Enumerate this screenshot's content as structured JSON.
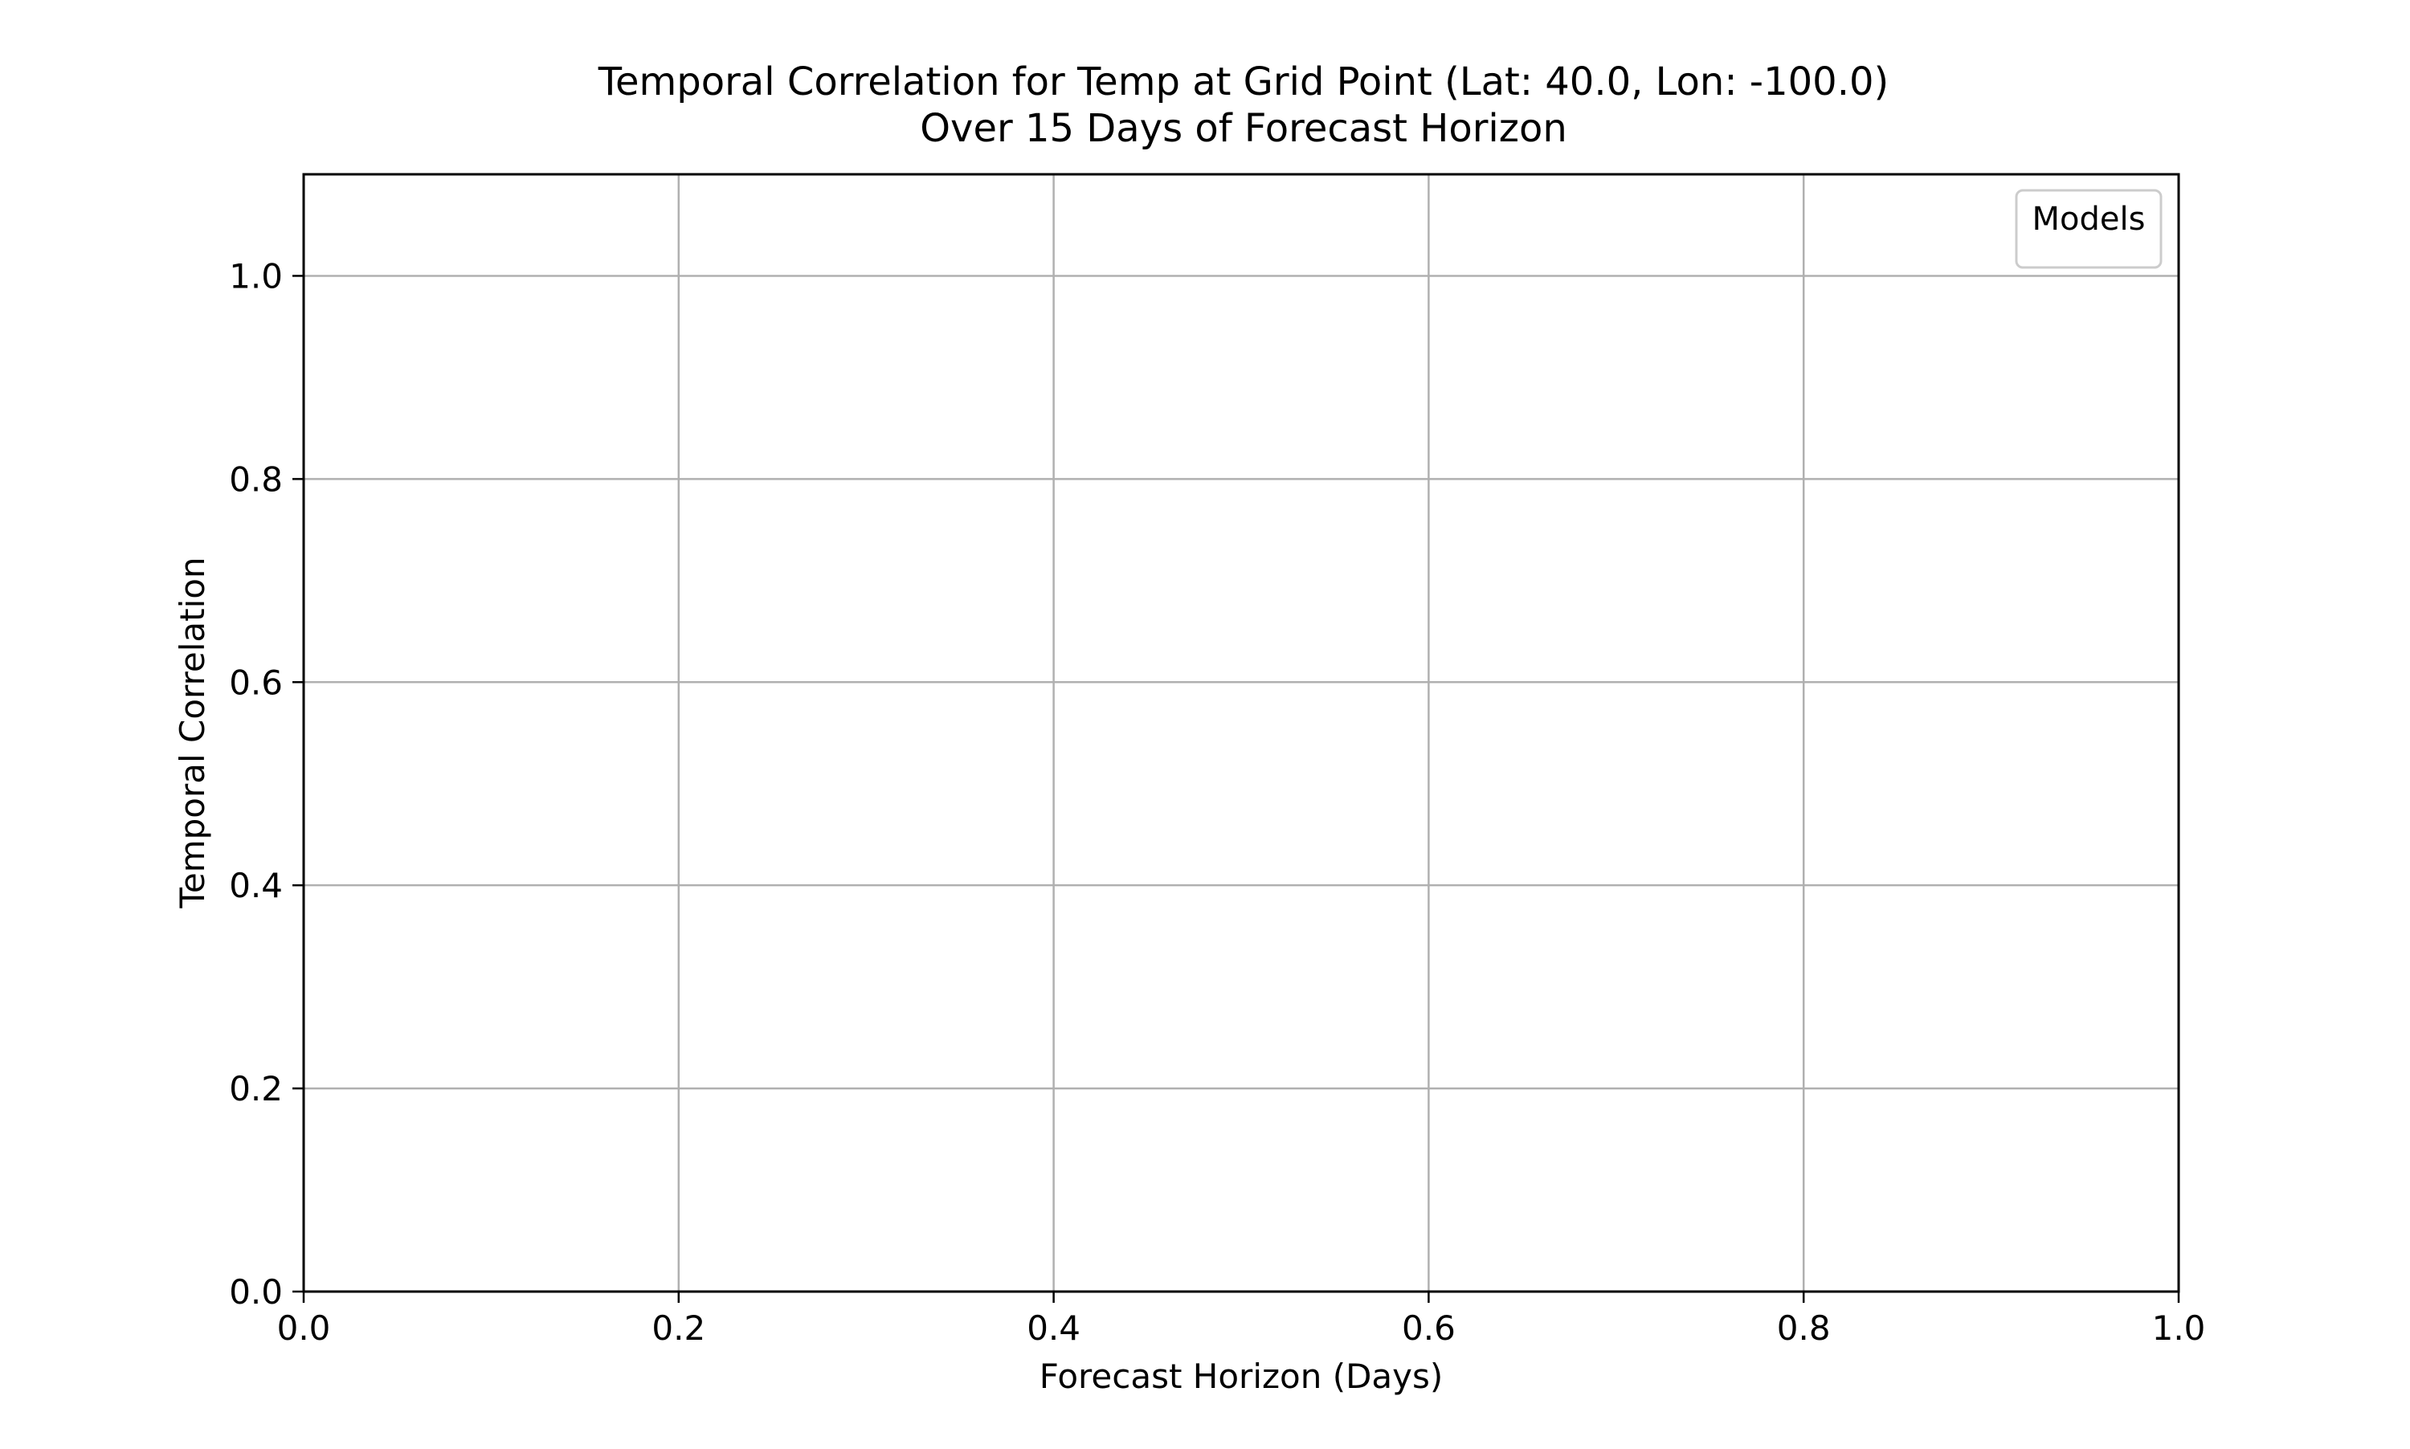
{
  "chart_data": {
    "type": "line",
    "title": "Temporal Correlation for Temp at Grid Point (Lat: 40.0, Lon: -100.0)",
    "subtitle": "Over 15 Days of Forecast Horizon",
    "xlabel": "Forecast Horizon (Days)",
    "ylabel": "Temporal Correlation",
    "xlim": [
      0.0,
      1.0
    ],
    "ylim": [
      0.0,
      1.1
    ],
    "x_ticks": [
      0.0,
      0.2,
      0.4,
      0.6,
      0.8,
      1.0
    ],
    "x_tick_labels": [
      "0.0",
      "0.2",
      "0.4",
      "0.6",
      "0.8",
      "1.0"
    ],
    "y_ticks": [
      0.0,
      0.2,
      0.4,
      0.6,
      0.8,
      1.0
    ],
    "y_tick_labels": [
      "0.0",
      "0.2",
      "0.4",
      "0.6",
      "0.8",
      "1.0"
    ],
    "grid": true,
    "legend": {
      "title": "Models",
      "placement": "top-right",
      "entries": []
    },
    "series": []
  }
}
